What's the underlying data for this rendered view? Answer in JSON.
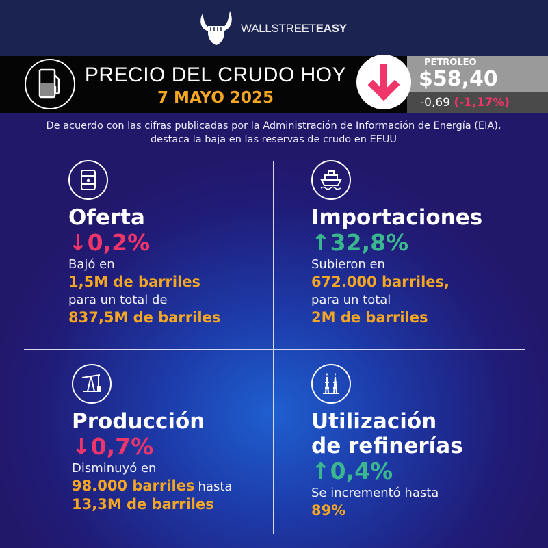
{
  "brand": {
    "name_light": "WALLSTREET",
    "name_bold": "EASY"
  },
  "banner": {
    "title": "PRECIO DEL CRUDO HOY",
    "date": "7 MAYO 2025",
    "icon": "fuel-pump-icon"
  },
  "price": {
    "label": "PETRÓLEO",
    "value": "$58,40",
    "change": "-0,69",
    "change_pct": "(-1,17%)",
    "direction": "down",
    "arrow_color": "#f0356a"
  },
  "intro": "De acuerdo con las cifras publicadas por la Administración de Información de Energía (EIA), destaca la baja en las reservas de crudo en EEUU",
  "colors": {
    "down": "#f0356a",
    "up": "#3bb78f",
    "highlight": "#f5a623"
  },
  "sections": [
    {
      "title": "Oferta",
      "pct": "↓0,2%",
      "direction": "down",
      "icon": "oil-barrel-icon",
      "lines": [
        "Bajó en",
        "1,5M de barriles",
        "para un total de",
        "837,5M de barriles"
      ]
    },
    {
      "title": "Importaciones",
      "pct": "↑32,8%",
      "direction": "up",
      "icon": "cargo-ship-icon",
      "lines": [
        "Subieron en",
        "672.000 barriles,",
        "para un total",
        "2M de barriles"
      ]
    },
    {
      "title": "Producción",
      "pct": "↓0,7%",
      "direction": "down",
      "icon": "oil-pumpjack-icon",
      "lines": [
        "Disminuyó en",
        "98.000 barriles",
        "hasta",
        "13,3M de barriles"
      ]
    },
    {
      "title_1": "Utilización",
      "title_2": "de refinerías",
      "pct": "↑0,4%",
      "direction": "up",
      "icon": "refinery-icon",
      "lines": [
        "Se incrementó hasta",
        "89%"
      ]
    }
  ]
}
